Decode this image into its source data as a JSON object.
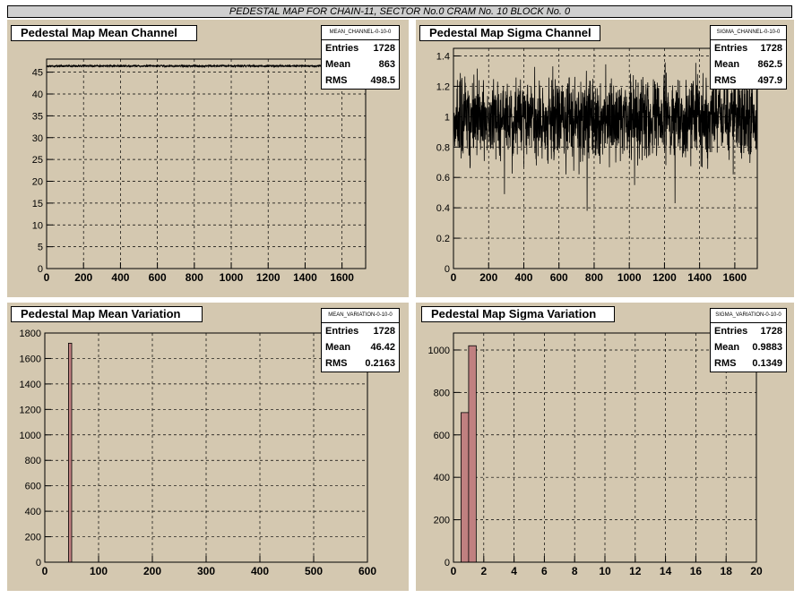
{
  "banner": "PEDESTAL MAP FOR CHAIN-11, SECTOR No.0 CRAM No. 10 BLOCK No. 0",
  "footer": "",
  "colors": {
    "pad_bg": "#d4c8b0",
    "hist_fill": "#c08080",
    "line": "#000000"
  },
  "chart_data": [
    {
      "type": "line",
      "title": "Pedestal Map Mean Channel",
      "stats": {
        "name": "MEAN_CHANNEL-0-10-0",
        "entries": "1728",
        "mean": "863",
        "rms": "498.5"
      },
      "xlim": [
        0,
        1728
      ],
      "ylim": [
        0,
        48
      ],
      "xticks": [
        0,
        200,
        400,
        600,
        800,
        1000,
        1200,
        1400,
        1600
      ],
      "yticks": [
        0,
        5,
        10,
        15,
        20,
        25,
        30,
        35,
        40,
        45
      ],
      "trace": {
        "n": 1728,
        "level": 46.42,
        "spread": 0.22,
        "noise": "uniform"
      }
    },
    {
      "type": "line",
      "title": "Pedestal Map Sigma Channel",
      "stats": {
        "name": "SIGMA_CHANNEL-0-10-0",
        "entries": "1728",
        "mean": "862.5",
        "rms": "497.9"
      },
      "xlim": [
        0,
        1728
      ],
      "ylim": [
        0,
        1.45
      ],
      "xticks": [
        0,
        200,
        400,
        600,
        800,
        1000,
        1200,
        1400,
        1600
      ],
      "yticks": [
        0,
        0.2,
        0.4,
        0.6,
        0.8,
        1,
        1.2,
        1.4
      ],
      "ytick_labels": [
        "0",
        "0.2",
        "0.4",
        "0.6",
        "0.8",
        "1",
        "1.2",
        "1.4"
      ],
      "trace": {
        "n": 1728,
        "level": 0.9883,
        "spread": 0.1349,
        "noise": "gaussian",
        "dips": [
          [
            290,
            0.49
          ],
          [
            760,
            0.38
          ],
          [
            1030,
            0.55
          ],
          [
            1260,
            0.43
          ],
          [
            640,
            0.62
          ]
        ]
      }
    },
    {
      "type": "bar",
      "title": "Pedestal Map Mean Variation",
      "stats": {
        "name": "MEAN_VARIATION-0-10-0",
        "entries": "1728",
        "mean": "46.42",
        "rms": "0.2163"
      },
      "xlim": [
        0,
        600
      ],
      "ylim": [
        0,
        1800
      ],
      "xticks": [
        0,
        100,
        200,
        300,
        400,
        500,
        600
      ],
      "yticks": [
        0,
        200,
        400,
        600,
        800,
        1000,
        1200,
        1400,
        1600,
        1800
      ],
      "bins": [
        {
          "x0": 44,
          "x1": 50,
          "value": 1720
        }
      ]
    },
    {
      "type": "bar",
      "title": "Pedestal Map Sigma Variation",
      "stats": {
        "name": "SIGMA_VARIATION-0-10-0",
        "entries": "1728",
        "mean": "0.9883",
        "rms": "0.1349"
      },
      "xlim": [
        0,
        20
      ],
      "ylim": [
        0,
        1080
      ],
      "xticks": [
        0,
        2,
        4,
        6,
        8,
        10,
        12,
        14,
        16,
        18,
        20
      ],
      "yticks": [
        0,
        200,
        400,
        600,
        800,
        1000
      ],
      "bins": [
        {
          "x0": 0.5,
          "x1": 1.0,
          "value": 705
        },
        {
          "x0": 1.0,
          "x1": 1.5,
          "value": 1020
        }
      ]
    }
  ]
}
